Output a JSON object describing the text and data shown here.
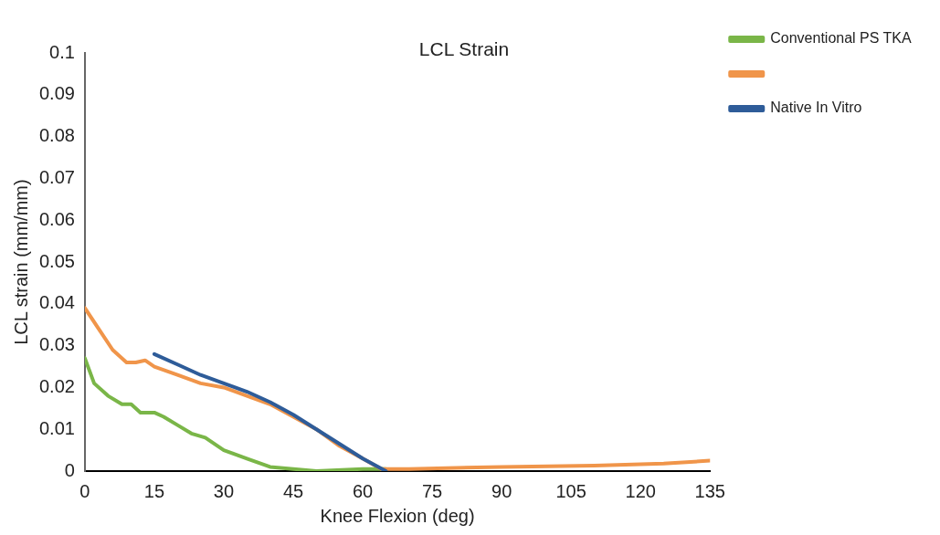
{
  "chart_data": {
    "type": "line",
    "title": "LCL Strain",
    "xlabel": "Knee Flexion (deg)",
    "ylabel": "LCL strain (mm/mm)",
    "xlim": [
      0,
      135
    ],
    "xticks": [
      0,
      15,
      30,
      45,
      60,
      75,
      90,
      105,
      120,
      135
    ],
    "ylim": [
      0,
      0.1
    ],
    "yticks": [
      0,
      0.01,
      0.02,
      0.03,
      0.04,
      0.05,
      0.06,
      0.07,
      0.08,
      0.09,
      0.1
    ],
    "grid": false,
    "legend": "top right",
    "marker": "none",
    "line_style": "solid",
    "series": [
      {
        "name": "Conventional PS TKA",
        "color": "#7ab648",
        "x": [
          0,
          2,
          5,
          8,
          10,
          12,
          15,
          17,
          20,
          23,
          26,
          30,
          35,
          40,
          45,
          50,
          60,
          65
        ],
        "values": [
          0.027,
          0.021,
          0.018,
          0.016,
          0.016,
          0.014,
          0.014,
          0.013,
          0.011,
          0.009,
          0.008,
          0.005,
          0.003,
          0.001,
          0.0005,
          0,
          0.0005,
          0.0005
        ]
      },
      {
        "color": "#f0954a",
        "x": [
          0,
          3,
          6,
          9,
          11,
          13,
          15,
          20,
          25,
          30,
          35,
          40,
          45,
          50,
          55,
          60,
          64,
          70,
          90,
          110,
          125,
          135
        ],
        "values": [
          0.039,
          0.034,
          0.029,
          0.026,
          0.026,
          0.0265,
          0.025,
          0.023,
          0.021,
          0.02,
          0.018,
          0.016,
          0.013,
          0.01,
          0.006,
          0.003,
          0.0005,
          0.0005,
          0.001,
          0.0013,
          0.0018,
          0.0025
        ]
      },
      {
        "name": "Native In Vitro",
        "color": "#2e5c99",
        "x": [
          15,
          20,
          25,
          30,
          35,
          40,
          45,
          50,
          55,
          60,
          65
        ],
        "values": [
          0.028,
          0.0255,
          0.023,
          0.021,
          0.019,
          0.0165,
          0.0135,
          0.01,
          0.0065,
          0.003,
          0
        ]
      }
    ]
  }
}
